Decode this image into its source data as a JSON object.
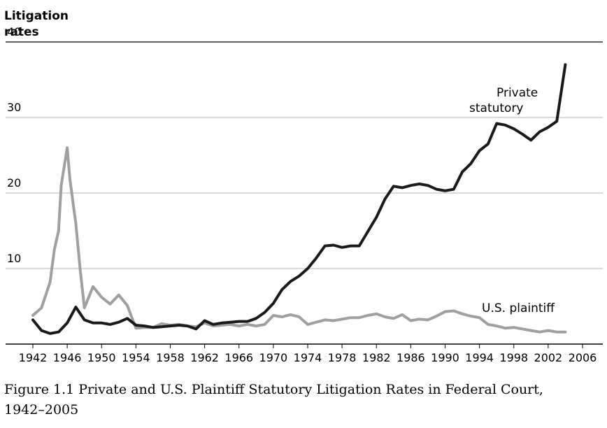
{
  "chart_data": {
    "type": "line",
    "title": "",
    "ylabel_line1": "Litigation",
    "ylabel_line2": "rates",
    "xlabel": "",
    "xlim": [
      1942,
      2006
    ],
    "ylim": [
      0,
      40
    ],
    "yticks": [
      10,
      20,
      30,
      40
    ],
    "xticks": [
      1942,
      1946,
      1950,
      1954,
      1958,
      1962,
      1966,
      1970,
      1974,
      1978,
      1982,
      1986,
      1990,
      1994,
      1998,
      2002,
      2006
    ],
    "grid": true,
    "legend": "inline labels",
    "series": [
      {
        "name": "Private statutory",
        "label_line1": "Private",
        "label_line2": "statutory",
        "color": "#1a1a1a",
        "points": [
          [
            1942,
            3.2
          ],
          [
            1943,
            1.8
          ],
          [
            1944,
            1.4
          ],
          [
            1945,
            1.6
          ],
          [
            1946,
            2.8
          ],
          [
            1947,
            4.9
          ],
          [
            1948,
            3.2
          ],
          [
            1949,
            2.8
          ],
          [
            1950,
            2.8
          ],
          [
            1951,
            2.6
          ],
          [
            1952,
            2.9
          ],
          [
            1953,
            3.4
          ],
          [
            1954,
            2.5
          ],
          [
            1955,
            2.4
          ],
          [
            1956,
            2.2
          ],
          [
            1957,
            2.3
          ],
          [
            1958,
            2.4
          ],
          [
            1959,
            2.5
          ],
          [
            1960,
            2.4
          ],
          [
            1961,
            2.0
          ],
          [
            1962,
            3.1
          ],
          [
            1963,
            2.6
          ],
          [
            1964,
            2.8
          ],
          [
            1965,
            2.9
          ],
          [
            1966,
            3.0
          ],
          [
            1967,
            3.0
          ],
          [
            1968,
            3.4
          ],
          [
            1969,
            4.2
          ],
          [
            1970,
            5.4
          ],
          [
            1971,
            7.2
          ],
          [
            1972,
            8.3
          ],
          [
            1973,
            9.0
          ],
          [
            1974,
            10.0
          ],
          [
            1975,
            11.4
          ],
          [
            1976,
            13.0
          ],
          [
            1977,
            13.1
          ],
          [
            1978,
            12.8
          ],
          [
            1979,
            13.0
          ],
          [
            1980,
            13.0
          ],
          [
            1981,
            14.9
          ],
          [
            1982,
            16.8
          ],
          [
            1983,
            19.2
          ],
          [
            1984,
            20.9
          ],
          [
            1985,
            20.7
          ],
          [
            1986,
            21.0
          ],
          [
            1987,
            21.2
          ],
          [
            1988,
            21.0
          ],
          [
            1989,
            20.5
          ],
          [
            1990,
            20.3
          ],
          [
            1991,
            20.5
          ],
          [
            1992,
            22.8
          ],
          [
            1993,
            23.9
          ],
          [
            1994,
            25.6
          ],
          [
            1995,
            26.5
          ],
          [
            1996,
            29.2
          ],
          [
            1997,
            29.0
          ],
          [
            1998,
            28.5
          ],
          [
            1999,
            27.8
          ],
          [
            2000,
            27.0
          ],
          [
            2001,
            28.1
          ],
          [
            2002,
            28.7
          ],
          [
            2003,
            29.5
          ],
          [
            2004,
            37.0
          ]
        ]
      },
      {
        "name": "U.S. plaintiff",
        "label_line1": "U.S. plaintiff",
        "label_line2": "",
        "color": "#a0a0a0",
        "points": [
          [
            1942,
            3.8
          ],
          [
            1943,
            4.8
          ],
          [
            1944,
            8.2
          ],
          [
            1944.5,
            12.5
          ],
          [
            1945,
            15.0
          ],
          [
            1945.3,
            21.0
          ],
          [
            1946,
            26.0
          ],
          [
            1946.3,
            22.0
          ],
          [
            1946.7,
            18.5
          ],
          [
            1947,
            16.0
          ],
          [
            1947.5,
            10.0
          ],
          [
            1948,
            4.8
          ],
          [
            1949,
            7.6
          ],
          [
            1950,
            6.2
          ],
          [
            1951,
            5.3
          ],
          [
            1952,
            6.5
          ],
          [
            1953,
            5.1
          ],
          [
            1954,
            2.1
          ],
          [
            1955,
            2.2
          ],
          [
            1956,
            2.2
          ],
          [
            1957,
            2.7
          ],
          [
            1958,
            2.5
          ],
          [
            1959,
            2.6
          ],
          [
            1960,
            2.4
          ],
          [
            1961,
            2.3
          ],
          [
            1962,
            2.8
          ],
          [
            1963,
            2.4
          ],
          [
            1964,
            2.5
          ],
          [
            1965,
            2.6
          ],
          [
            1966,
            2.4
          ],
          [
            1967,
            2.6
          ],
          [
            1968,
            2.4
          ],
          [
            1969,
            2.6
          ],
          [
            1970,
            3.8
          ],
          [
            1971,
            3.6
          ],
          [
            1972,
            3.9
          ],
          [
            1973,
            3.6
          ],
          [
            1974,
            2.6
          ],
          [
            1975,
            2.9
          ],
          [
            1976,
            3.2
          ],
          [
            1977,
            3.1
          ],
          [
            1978,
            3.3
          ],
          [
            1979,
            3.5
          ],
          [
            1980,
            3.5
          ],
          [
            1981,
            3.8
          ],
          [
            1982,
            4.0
          ],
          [
            1983,
            3.6
          ],
          [
            1984,
            3.4
          ],
          [
            1985,
            3.9
          ],
          [
            1986,
            3.1
          ],
          [
            1987,
            3.3
          ],
          [
            1988,
            3.2
          ],
          [
            1989,
            3.7
          ],
          [
            1990,
            4.3
          ],
          [
            1991,
            4.4
          ],
          [
            1992,
            4.0
          ],
          [
            1993,
            3.7
          ],
          [
            1994,
            3.5
          ],
          [
            1995,
            2.6
          ],
          [
            1996,
            2.4
          ],
          [
            1997,
            2.1
          ],
          [
            1998,
            2.2
          ],
          [
            1999,
            2.0
          ],
          [
            2000,
            1.8
          ],
          [
            2001,
            1.6
          ],
          [
            2002,
            1.8
          ],
          [
            2003,
            1.6
          ],
          [
            2004,
            1.6
          ]
        ]
      }
    ]
  },
  "caption": {
    "line1": "Figure 1.1  Private and U.S. Plaintiff Statutory Litigation Rates in Federal Court,",
    "line2": "1942–2005"
  }
}
